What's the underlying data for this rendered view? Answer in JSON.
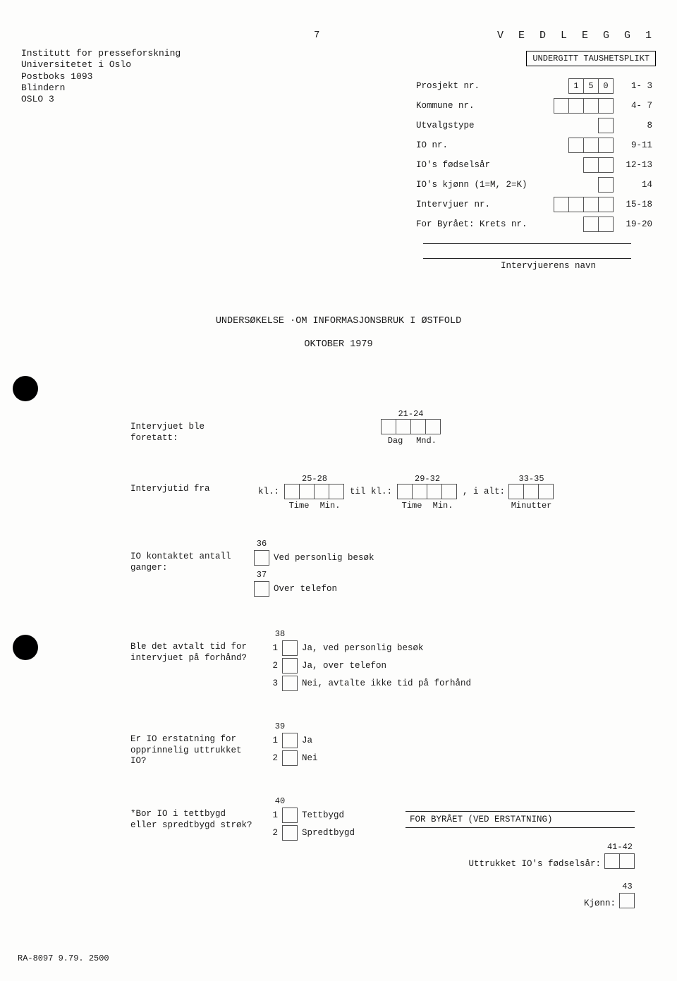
{
  "page_number": "7",
  "vedlegg": "V E D L E G G   1",
  "institution": {
    "line1": "Institutt for presseforskning",
    "line2": "Universitetet i Oslo",
    "line3": "Postboks 1093",
    "line4": "Blindern",
    "line5": "OSLO 3"
  },
  "confidentiality": "UNDERGITT TAUSHETSPLIKT",
  "meta": {
    "rows": [
      {
        "label": "Prosjekt nr.",
        "boxes": 3,
        "values": [
          "1",
          "5",
          "0"
        ],
        "range": "1- 3"
      },
      {
        "label": "Kommune nr.",
        "boxes": 4,
        "values": [
          "",
          "",
          "",
          ""
        ],
        "range": "4- 7"
      },
      {
        "label": "Utvalgstype",
        "boxes": 1,
        "values": [
          ""
        ],
        "range": "8"
      },
      {
        "label": "IO nr.",
        "boxes": 3,
        "values": [
          "",
          "",
          ""
        ],
        "range": "9-11"
      },
      {
        "label": "IO's fødselsår",
        "boxes": 2,
        "values": [
          "",
          ""
        ],
        "range": "12-13"
      },
      {
        "label": "IO's kjønn (1=M, 2=K)",
        "boxes": 1,
        "values": [
          ""
        ],
        "range": "14"
      },
      {
        "label": "Intervjuer nr.",
        "boxes": 4,
        "values": [
          "",
          "",
          "",
          ""
        ],
        "range": "15-18"
      },
      {
        "label": "For Byrået: Krets nr.",
        "boxes": 2,
        "values": [
          "",
          ""
        ],
        "range": "19-20"
      }
    ]
  },
  "interviewer_name_label": "Intervjuerens navn",
  "survey_title": "UNDERSØKELSE ·OM INFORMASJONSBRUK I ØSTFOLD",
  "survey_date": "OKTOBER 1979",
  "q1": {
    "label": "Intervjuet ble foretatt:",
    "col_range": "21-24",
    "sub_labels": [
      "Dag",
      "Mnd."
    ]
  },
  "q2": {
    "label": "Intervjutid fra",
    "kl": "kl.:",
    "til": "til kl.:",
    "ialt": ", i alt:",
    "ranges": [
      "25-28",
      "29-32",
      "33-35"
    ],
    "sub_labels_a": [
      "Time",
      "Min."
    ],
    "sub_labels_b": [
      "Time",
      "Min."
    ],
    "sub_label_c": "Minutter"
  },
  "q3": {
    "label": "IO kontaktet antall ganger:",
    "opts": [
      {
        "colnum": "36",
        "text": "Ved personlig besøk"
      },
      {
        "colnum": "37",
        "text": "Over telefon"
      }
    ]
  },
  "q4": {
    "label": "Ble det avtalt tid for intervjuet på forhånd?",
    "colnum": "38",
    "opts": [
      {
        "n": "1",
        "text": "Ja, ved personlig besøk"
      },
      {
        "n": "2",
        "text": "Ja, over telefon"
      },
      {
        "n": "3",
        "text": "Nei, avtalte ikke tid på forhånd"
      }
    ]
  },
  "q5": {
    "label": "Er IO erstatning for opprinnelig uttrukket IO?",
    "colnum": "39",
    "opts": [
      {
        "n": "1",
        "text": "Ja"
      },
      {
        "n": "2",
        "text": "Nei"
      }
    ]
  },
  "q6": {
    "label": "*Bor IO i tettbygd eller spredtbygd strøk?",
    "colnum": "40",
    "opts": [
      {
        "n": "1",
        "text": "Tettbygd"
      },
      {
        "n": "2",
        "text": "Spredtbygd"
      }
    ]
  },
  "footer": {
    "title": "FOR BYRÅET (VED ERSTATNING)",
    "r1_label": "Uttrukket IO's fødselsår:",
    "r1_range": "41-42",
    "r2_label": "Kjønn:",
    "r2_range": "43"
  },
  "doc_id": "RA-8097    9.79. 2500"
}
